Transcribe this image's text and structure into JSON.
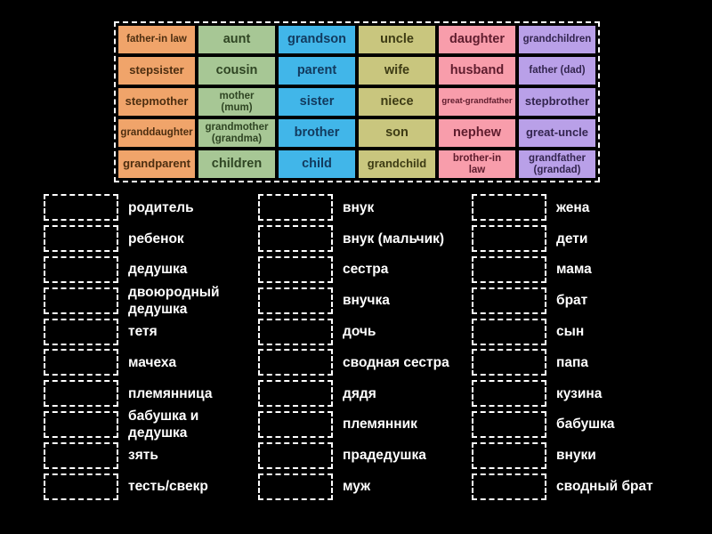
{
  "colors": {
    "background": "#000000",
    "dashed_outline": "#ffffff",
    "palette": {
      "orange": {
        "bg": "#f0a46a",
        "text": "#4d2e10"
      },
      "green": {
        "bg": "#a7c795",
        "text": "#2f4523"
      },
      "blue": {
        "bg": "#41b6e9",
        "text": "#123a5e"
      },
      "olive": {
        "bg": "#c9c67e",
        "text": "#3d3b14"
      },
      "pink": {
        "bg": "#f89dab",
        "text": "#5e1c2d"
      },
      "purple": {
        "bg": "#b9a0e8",
        "text": "#33254f"
      }
    }
  },
  "tile_grid": {
    "column_colors": [
      "orange",
      "green",
      "blue",
      "olive",
      "pink",
      "purple"
    ],
    "rows": [
      [
        "father-in law",
        "aunt",
        "grandson",
        "uncle",
        "daughter",
        "grandchildren"
      ],
      [
        "stepsister",
        "cousin",
        "parent",
        "wife",
        "husband",
        "father (dad)"
      ],
      [
        "stepmother",
        [
          "mother",
          "(mum)"
        ],
        "sister",
        "niece",
        "great-grandfather",
        "stepbrother"
      ],
      [
        "granddaughter",
        [
          "grandmother",
          "(grandma)"
        ],
        "brother",
        "son",
        "nephew",
        "great-uncle"
      ],
      [
        "grandparent",
        "children",
        "child",
        "grandchild",
        [
          "brother-in",
          "law"
        ],
        [
          "grandfather",
          "(grandad)"
        ]
      ]
    ]
  },
  "match_columns": [
    {
      "items": [
        "родитель",
        "ребенок",
        "дедушка",
        "двоюродный дедушка",
        "тетя",
        "мачеха",
        "племянница",
        "бабушка и дедушка",
        "зять",
        "тесть/свекр"
      ]
    },
    {
      "items": [
        "внук",
        "внук (мальчик)",
        "сестра",
        "внучка",
        "дочь",
        "сводная сестра",
        "дядя",
        "племянник",
        "прадедушка",
        "муж"
      ]
    },
    {
      "items": [
        "жена",
        "дети",
        "мама",
        "брат",
        "сын",
        "папа",
        "кузина",
        "бабушка",
        "внуки",
        "сводный брат"
      ]
    }
  ]
}
